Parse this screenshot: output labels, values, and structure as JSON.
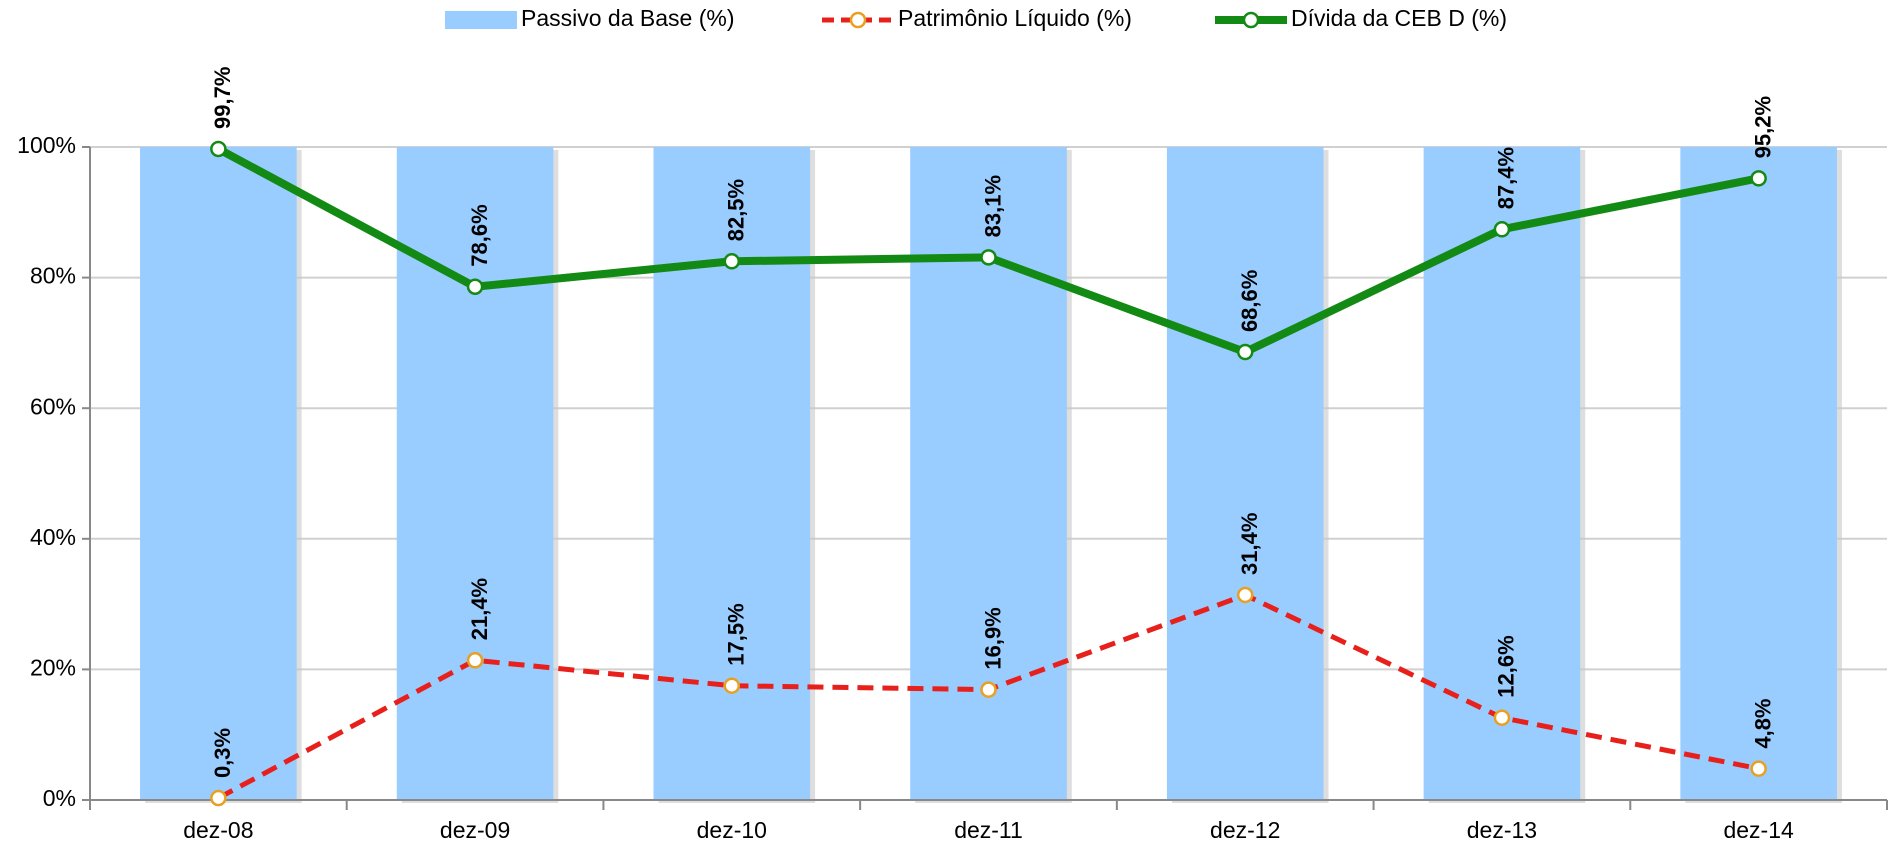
{
  "chart_data": {
    "type": "combo",
    "categories": [
      "dez-08",
      "dez-09",
      "dez-10",
      "dez-11",
      "dez-12",
      "dez-13",
      "dez-14"
    ],
    "series": [
      {
        "name": "Passivo da Base (%)",
        "type": "bar",
        "color": "#99ccff",
        "values": [
          100,
          100,
          100,
          100,
          100,
          100,
          100
        ]
      },
      {
        "name": "Patrimônio Líquido (%)",
        "type": "line",
        "dashed": true,
        "color": "#e8201c",
        "marker_color": "#e8a020",
        "values": [
          0.3,
          21.4,
          17.5,
          16.9,
          31.4,
          12.6,
          4.8
        ],
        "value_labels": [
          "0,3%",
          "21,4%",
          "17,5%",
          "16,9%",
          "31,4%",
          "12,6%",
          "4,8%"
        ]
      },
      {
        "name": "Dívida da CEB D (%)",
        "type": "line",
        "dashed": false,
        "color": "#138a13",
        "marker_color": "#138a13",
        "values": [
          99.7,
          78.6,
          82.5,
          83.1,
          68.6,
          87.4,
          95.2
        ],
        "value_labels": [
          "99,7%",
          "78,6%",
          "82,5%",
          "83,1%",
          "68,6%",
          "87,4%",
          "95,2%"
        ]
      }
    ],
    "ylim": [
      0,
      100
    ],
    "yticks": [
      {
        "value": 0,
        "label": "0%"
      },
      {
        "value": 20,
        "label": "20%"
      },
      {
        "value": 40,
        "label": "40%"
      },
      {
        "value": 60,
        "label": "60%"
      },
      {
        "value": 80,
        "label": "80%"
      },
      {
        "value": 100,
        "label": "100%"
      }
    ],
    "grid": true,
    "legend": "top"
  }
}
